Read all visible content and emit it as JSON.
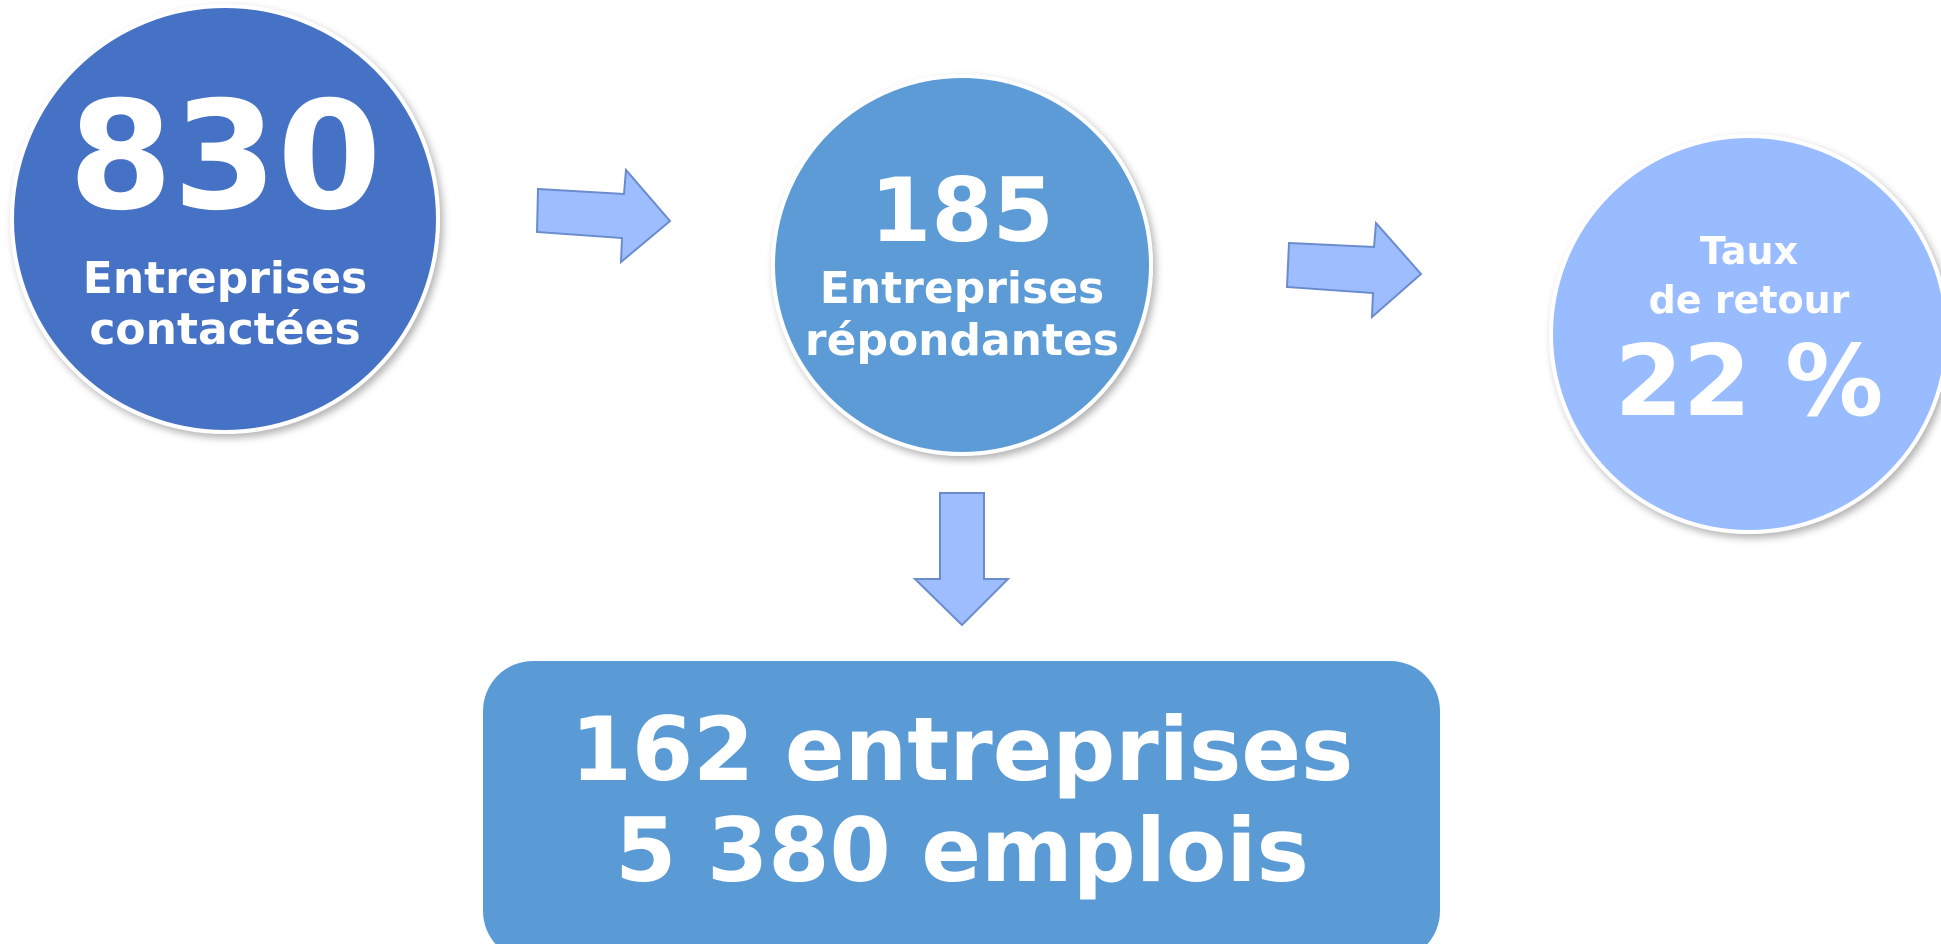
{
  "nodes": [
    {
      "number": "830",
      "label": [
        "Entreprises",
        "contactées"
      ]
    },
    {
      "number": "185",
      "label": [
        "Entreprises",
        "répondantes"
      ]
    },
    {
      "number": "22 %",
      "label": [
        "Taux",
        "de retour"
      ]
    }
  ],
  "result": {
    "lines": [
      "162 entreprises",
      "5 380 emplois"
    ]
  }
}
